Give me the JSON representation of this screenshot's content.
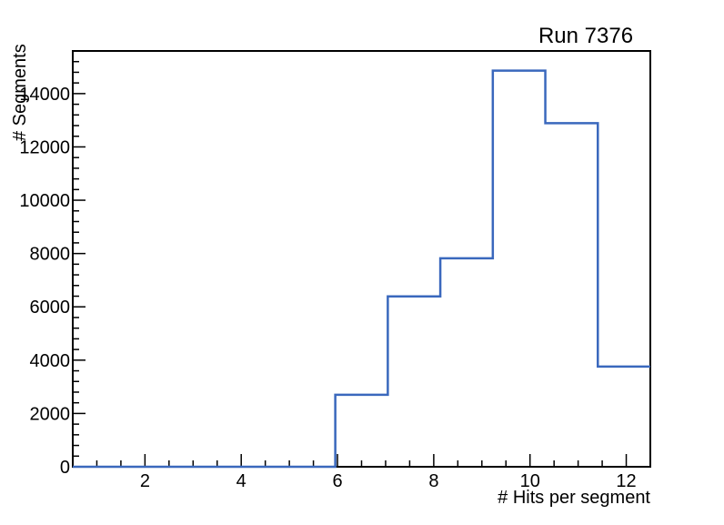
{
  "chart_data": {
    "type": "bar",
    "subtype": "step-histogram",
    "title": "Run 7376",
    "xlabel": "# Hits per segment",
    "ylabel": "# Segments",
    "xlim": [
      0.5,
      12.5
    ],
    "ylim": [
      0,
      15600
    ],
    "grid": false,
    "legend": null,
    "bins": {
      "count": 11,
      "edges": [
        0.5,
        1.5909,
        2.6818,
        3.7727,
        4.8636,
        5.9545,
        7.0455,
        8.1364,
        9.2273,
        10.3182,
        11.4091,
        12.5
      ],
      "values": [
        0,
        0,
        0,
        0,
        0,
        2700,
        6390,
        7820,
        14860,
        12890,
        3760
      ]
    },
    "x_major_ticks": [
      2,
      4,
      6,
      8,
      10,
      12
    ],
    "x_tick_labels": [
      "2",
      "4",
      "6",
      "8",
      "10",
      "12"
    ],
    "x_minor_tick_step": 0.5,
    "y_major_ticks": [
      0,
      2000,
      4000,
      6000,
      8000,
      10000,
      12000,
      14000
    ],
    "y_tick_labels": [
      "0",
      "2000",
      "4000",
      "6000",
      "8000",
      "10000",
      "12000",
      "14000"
    ],
    "y_minor_tick_step": 400,
    "colors": {
      "line": "#3a68bd",
      "frame": "#000000",
      "background": "#ffffff",
      "text": "#000000"
    }
  }
}
